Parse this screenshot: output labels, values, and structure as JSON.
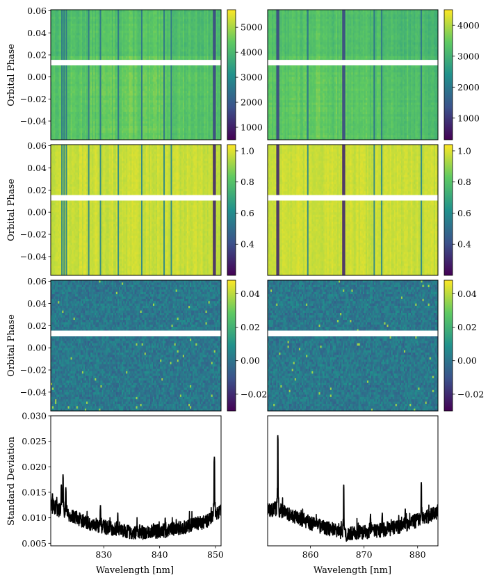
{
  "figure": {
    "ylabels": [
      "Orbital Phase",
      "Orbital Phase",
      "Orbital Phase",
      "Standard Deviation"
    ],
    "xlabel": "Wavelength [nm]"
  },
  "colormap": [
    "#440154",
    "#3b528b",
    "#21918c",
    "#5ec962",
    "#fde725"
  ],
  "chart_data": [
    {
      "type": "heatmap",
      "row": 0,
      "col": 0,
      "xlim": [
        820.5,
        851
      ],
      "ylim": [
        -0.057,
        0.061
      ],
      "yticks": [
        -0.04,
        -0.02,
        0.0,
        0.02,
        0.04,
        0.06
      ],
      "ytick_labels": [
        "−0.04",
        "−0.02",
        "0.00",
        "0.02",
        "0.04",
        "0.06"
      ],
      "gap": [
        0.0105,
        0.0155
      ],
      "clim": [
        500,
        5700
      ],
      "colorbar_ticks": [
        1000,
        2000,
        3000,
        4000,
        5000
      ],
      "colorbar_tick_labels": [
        "1000",
        "2000",
        "3000",
        "4000",
        "5000"
      ],
      "absorption_lines": [
        822.5,
        822.9,
        823.3,
        827.3,
        829.4,
        832.6,
        836.8,
        840.8,
        842.1,
        849.8
      ],
      "pattern": "flux"
    },
    {
      "type": "heatmap",
      "row": 0,
      "col": 1,
      "xlim": [
        852,
        883.8
      ],
      "ylim": [
        -0.057,
        0.061
      ],
      "yticks": [
        -0.04,
        -0.02,
        0.0,
        0.02,
        0.04,
        0.06
      ],
      "gap": [
        0.0105,
        0.0155
      ],
      "clim": [
        300,
        4500
      ],
      "colorbar_ticks": [
        1000,
        2000,
        3000,
        4000
      ],
      "colorbar_tick_labels": [
        "1000",
        "2000",
        "3000",
        "4000"
      ],
      "absorption_lines": [
        853.9,
        859.5,
        866.2,
        871.9,
        873.3,
        880.7
      ],
      "pattern": "flux"
    },
    {
      "type": "heatmap",
      "row": 1,
      "col": 0,
      "xlim": [
        820.5,
        851
      ],
      "ylim": [
        -0.057,
        0.061
      ],
      "yticks": [
        -0.04,
        -0.02,
        0.0,
        0.02,
        0.04,
        0.06
      ],
      "ytick_labels": [
        "−0.04",
        "−0.02",
        "0.00",
        "0.02",
        "0.04",
        "0.06"
      ],
      "gap": [
        0.0105,
        0.0155
      ],
      "clim": [
        0.2,
        1.04
      ],
      "colorbar_ticks": [
        0.4,
        0.6,
        0.8,
        1.0
      ],
      "colorbar_tick_labels": [
        "0.4",
        "0.6",
        "0.8",
        "1.0"
      ],
      "absorption_lines": [
        822.5,
        822.9,
        823.3,
        827.3,
        829.4,
        832.6,
        836.8,
        840.8,
        842.1,
        849.8
      ],
      "pattern": "normalized"
    },
    {
      "type": "heatmap",
      "row": 1,
      "col": 1,
      "xlim": [
        852,
        883.8
      ],
      "ylim": [
        -0.057,
        0.061
      ],
      "yticks": [
        -0.04,
        -0.02,
        0.0,
        0.02,
        0.04,
        0.06
      ],
      "gap": [
        0.0105,
        0.0155
      ],
      "clim": [
        0.2,
        1.04
      ],
      "colorbar_ticks": [
        0.4,
        0.6,
        0.8,
        1.0
      ],
      "colorbar_tick_labels": [
        "0.4",
        "0.6",
        "0.8",
        "1.0"
      ],
      "absorption_lines": [
        853.9,
        859.5,
        866.2,
        871.9,
        873.3,
        880.7
      ],
      "pattern": "normalized"
    },
    {
      "type": "heatmap",
      "row": 2,
      "col": 0,
      "xlim": [
        820.5,
        851
      ],
      "ylim": [
        -0.057,
        0.061
      ],
      "yticks": [
        -0.04,
        -0.02,
        0.0,
        0.02,
        0.04,
        0.06
      ],
      "ytick_labels": [
        "−0.04",
        "−0.02",
        "0.00",
        "0.02",
        "0.04",
        "0.06"
      ],
      "gap": [
        0.0105,
        0.0155
      ],
      "clim": [
        -0.03,
        0.048
      ],
      "colorbar_ticks": [
        -0.02,
        0.0,
        0.02,
        0.04
      ],
      "colorbar_tick_labels": [
        "−0.02",
        "0.00",
        "0.02",
        "0.04"
      ],
      "pattern": "residual"
    },
    {
      "type": "heatmap",
      "row": 2,
      "col": 1,
      "xlim": [
        852,
        883.8
      ],
      "ylim": [
        -0.057,
        0.061
      ],
      "yticks": [
        -0.04,
        -0.02,
        0.0,
        0.02,
        0.04,
        0.06
      ],
      "gap": [
        0.0105,
        0.0155
      ],
      "clim": [
        -0.03,
        0.048
      ],
      "colorbar_ticks": [
        -0.02,
        0.0,
        0.02,
        0.04
      ],
      "colorbar_tick_labels": [
        "−0.02",
        "0.00",
        "0.02",
        "0.04"
      ],
      "pattern": "residual"
    },
    {
      "type": "line",
      "row": 3,
      "col": 0,
      "xlim": [
        820.5,
        851
      ],
      "ylim": [
        0.0045,
        0.03
      ],
      "xticks": [
        830,
        840,
        850
      ],
      "xtick_labels": [
        "830",
        "840",
        "850"
      ],
      "yticks": [
        0.005,
        0.01,
        0.015,
        0.02,
        0.025,
        0.03
      ],
      "ytick_labels": [
        "0.005",
        "0.010",
        "0.015",
        "0.020",
        "0.025",
        "0.030"
      ],
      "x": [
        820.5,
        822.0,
        824.0,
        826.0,
        828.0,
        830.0,
        832.0,
        834.0,
        836.0,
        838.0,
        840.0,
        842.0,
        844.0,
        846.0,
        848.0,
        849.5,
        850.5,
        851.0
      ],
      "y": [
        0.0125,
        0.0115,
        0.0105,
        0.0095,
        0.0088,
        0.0082,
        0.0078,
        0.0073,
        0.0071,
        0.0072,
        0.0074,
        0.0077,
        0.0081,
        0.0086,
        0.0092,
        0.01,
        0.0108,
        0.0112
      ],
      "spikes": [
        [
          822.7,
          0.0185
        ],
        [
          822.4,
          0.0165
        ],
        [
          823.2,
          0.016
        ],
        [
          829.4,
          0.0125
        ],
        [
          832.5,
          0.011
        ],
        [
          841.0,
          0.01
        ],
        [
          849.8,
          0.022
        ],
        [
          820.8,
          0.0148
        ]
      ]
    },
    {
      "type": "line",
      "row": 3,
      "col": 1,
      "xlim": [
        852,
        883.8
      ],
      "ylim": [
        0.0045,
        0.03
      ],
      "xticks": [
        860,
        870,
        880
      ],
      "xtick_labels": [
        "860",
        "870",
        "880"
      ],
      "x": [
        852.0,
        853.5,
        855.0,
        857.0,
        859.0,
        861.0,
        863.0,
        865.0,
        866.5,
        868.0,
        870.0,
        872.0,
        874.0,
        876.0,
        878.0,
        880.0,
        882.0,
        883.8
      ],
      "y": [
        0.0112,
        0.0118,
        0.0112,
        0.0102,
        0.0094,
        0.0086,
        0.008,
        0.0074,
        0.0066,
        0.007,
        0.0072,
        0.0074,
        0.0077,
        0.0081,
        0.0087,
        0.0095,
        0.0103,
        0.0112
      ],
      "spikes": [
        [
          853.9,
          0.0262
        ],
        [
          866.2,
          0.0165
        ],
        [
          880.7,
          0.017
        ],
        [
          873.4,
          0.011
        ],
        [
          877.7,
          0.0118
        ],
        [
          871.2,
          0.0108
        ]
      ]
    }
  ]
}
